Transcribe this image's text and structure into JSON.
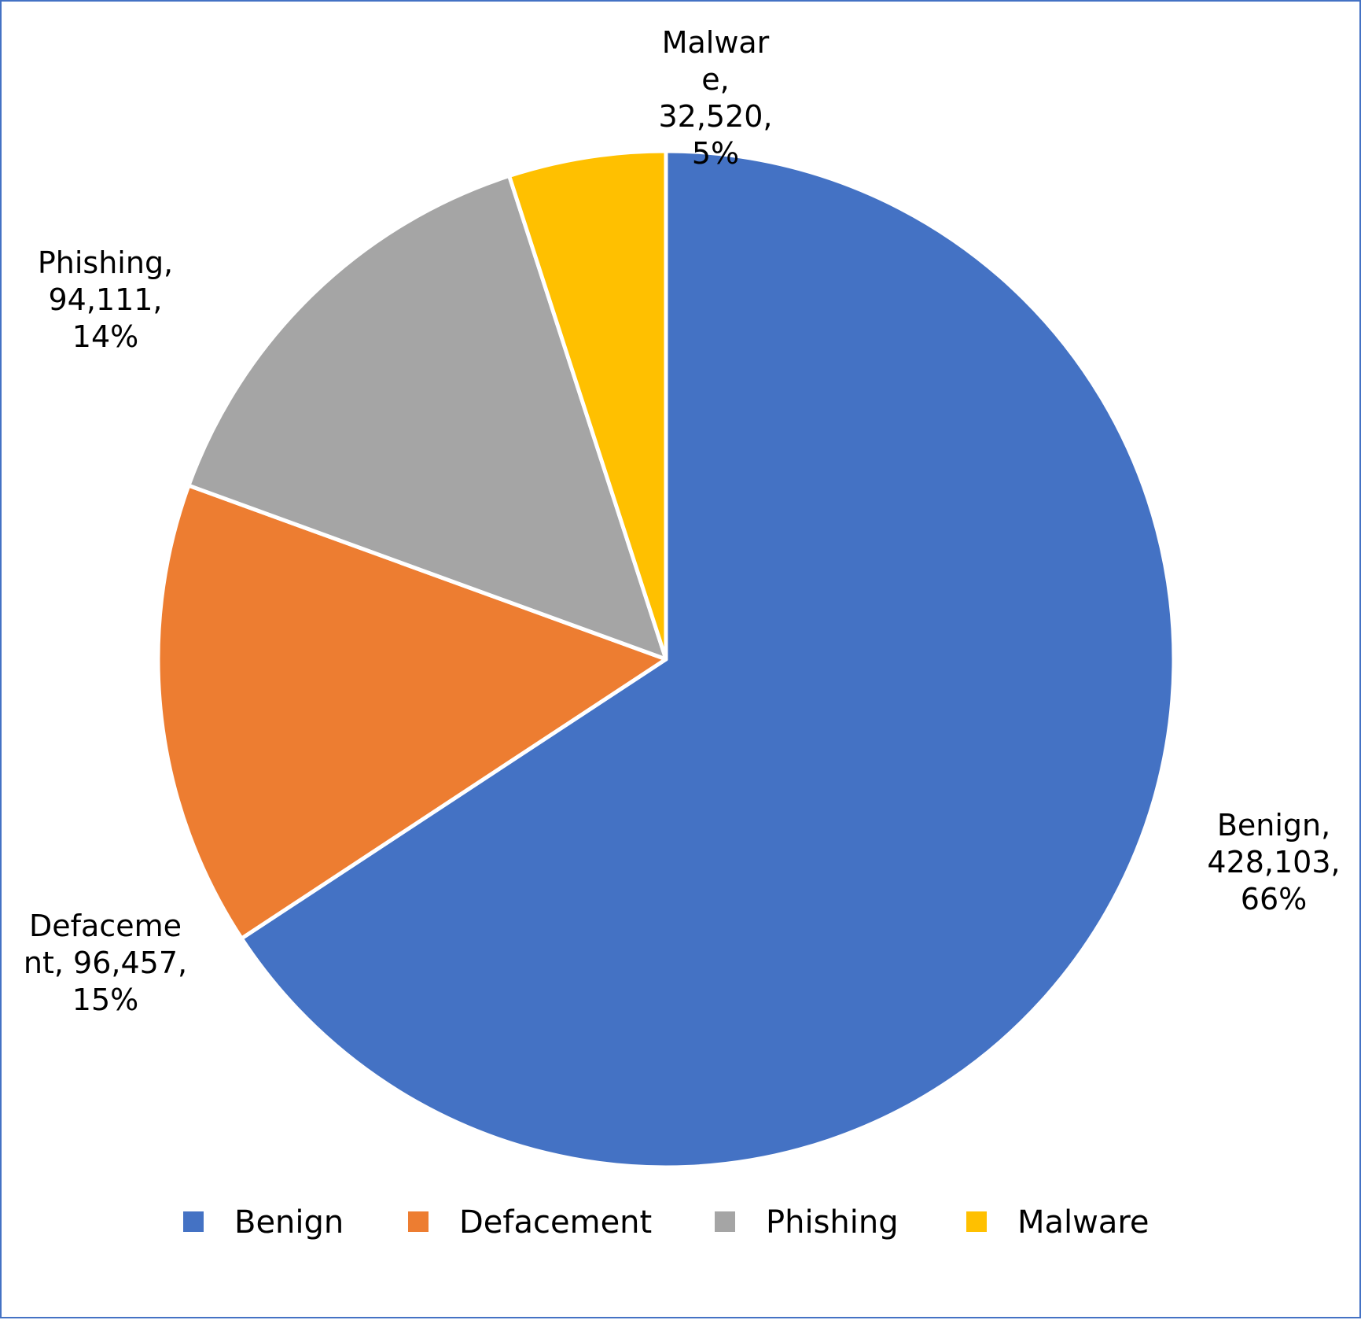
{
  "chart_data": {
    "type": "pie",
    "title": "",
    "categories": [
      "Benign",
      "Defacement",
      "Phishing",
      "Malware"
    ],
    "values": [
      428103,
      96457,
      94111,
      32520
    ],
    "percent_labels": [
      "66%",
      "15%",
      "14%",
      "5%"
    ],
    "colors": [
      "#4472c4",
      "#ed7d31",
      "#a5a5a5",
      "#ffc000"
    ],
    "start_angle_deg": 0,
    "direction": "clockwise",
    "data_labels": [
      [
        "Benign,",
        "428,103,",
        "66%"
      ],
      [
        "Defaceme",
        "nt, 96,457,",
        "15%"
      ],
      [
        "Phishing,",
        "94,111,",
        "14%"
      ],
      [
        "Malwar",
        "e,",
        "32,520,",
        "5%"
      ]
    ],
    "legend": {
      "position": "bottom",
      "entries": [
        "Benign",
        "Defacement",
        "Phishing",
        "Malware"
      ]
    }
  }
}
